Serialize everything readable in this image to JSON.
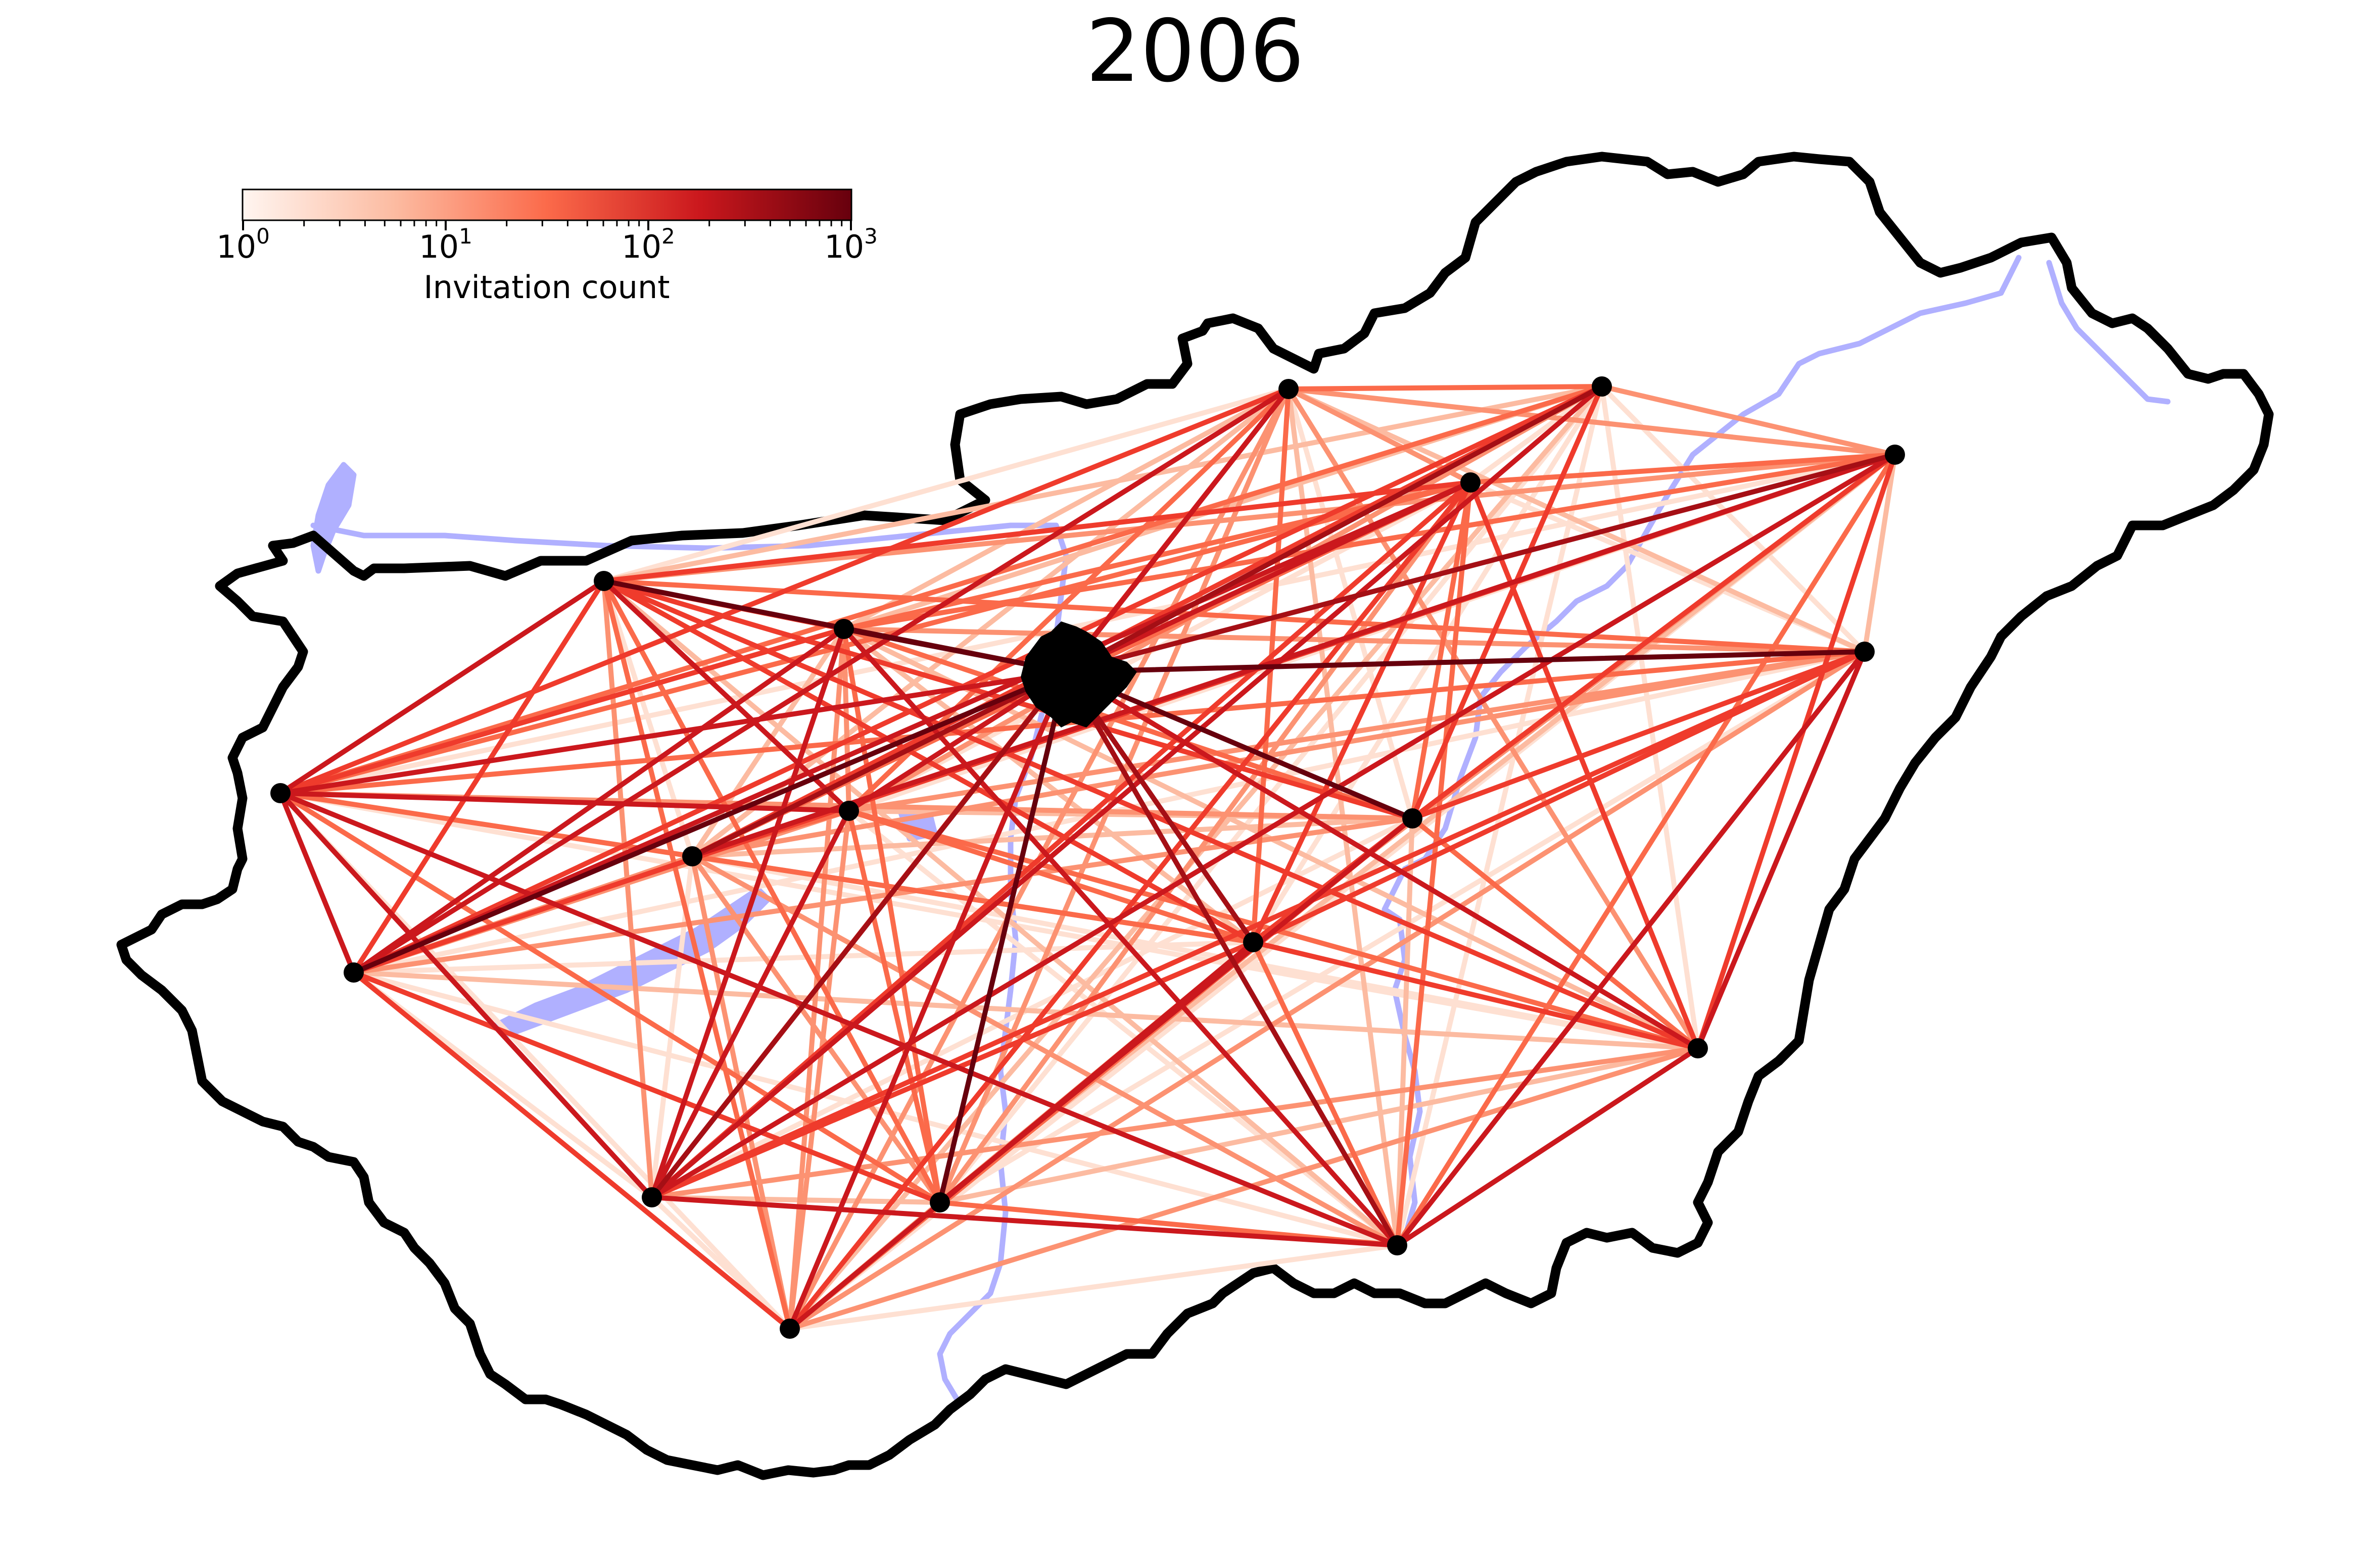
{
  "title": "2006",
  "colorbar": {
    "label": "Invitation count",
    "scale": "log",
    "colormap": "Reds",
    "min": 1,
    "max": 1000,
    "ticks": [
      {
        "base": "10",
        "exp": "0"
      },
      {
        "base": "10",
        "exp": "1"
      },
      {
        "base": "10",
        "exp": "2"
      },
      {
        "base": "10",
        "exp": "3"
      }
    ],
    "colors": [
      "#fff5f0",
      "#fcbba1",
      "#fb6a4a",
      "#cb181d",
      "#67000d"
    ]
  },
  "map": {
    "border_color": "#000000",
    "water_color": "#b0b0ff",
    "node_color": "#000000"
  },
  "nodes": [
    {
      "id": "budapest",
      "pos": [
        2110,
        1330
      ],
      "hub": true
    },
    {
      "id": "n01",
      "pos": [
        2550,
        770
      ]
    },
    {
      "id": "n02",
      "pos": [
        3170,
        765
      ]
    },
    {
      "id": "n03",
      "pos": [
        3750,
        900
      ]
    },
    {
      "id": "n04",
      "pos": [
        2910,
        955
      ]
    },
    {
      "id": "n05",
      "pos": [
        1195,
        1150
      ]
    },
    {
      "id": "n06",
      "pos": [
        1670,
        1245
      ]
    },
    {
      "id": "n07",
      "pos": [
        3690,
        1290
      ]
    },
    {
      "id": "n08",
      "pos": [
        555,
        1570
      ]
    },
    {
      "id": "n09",
      "pos": [
        1680,
        1605
      ]
    },
    {
      "id": "n10",
      "pos": [
        1370,
        1695
      ]
    },
    {
      "id": "n11",
      "pos": [
        2795,
        1620
      ]
    },
    {
      "id": "n12",
      "pos": [
        2480,
        1865
      ]
    },
    {
      "id": "n13",
      "pos": [
        700,
        1925
      ]
    },
    {
      "id": "n14",
      "pos": [
        3360,
        2075
      ]
    },
    {
      "id": "n15",
      "pos": [
        1290,
        2370
      ]
    },
    {
      "id": "n16",
      "pos": [
        1860,
        2380
      ]
    },
    {
      "id": "n17",
      "pos": [
        2765,
        2465
      ]
    },
    {
      "id": "n18",
      "pos": [
        1563,
        2630
      ]
    }
  ]
}
